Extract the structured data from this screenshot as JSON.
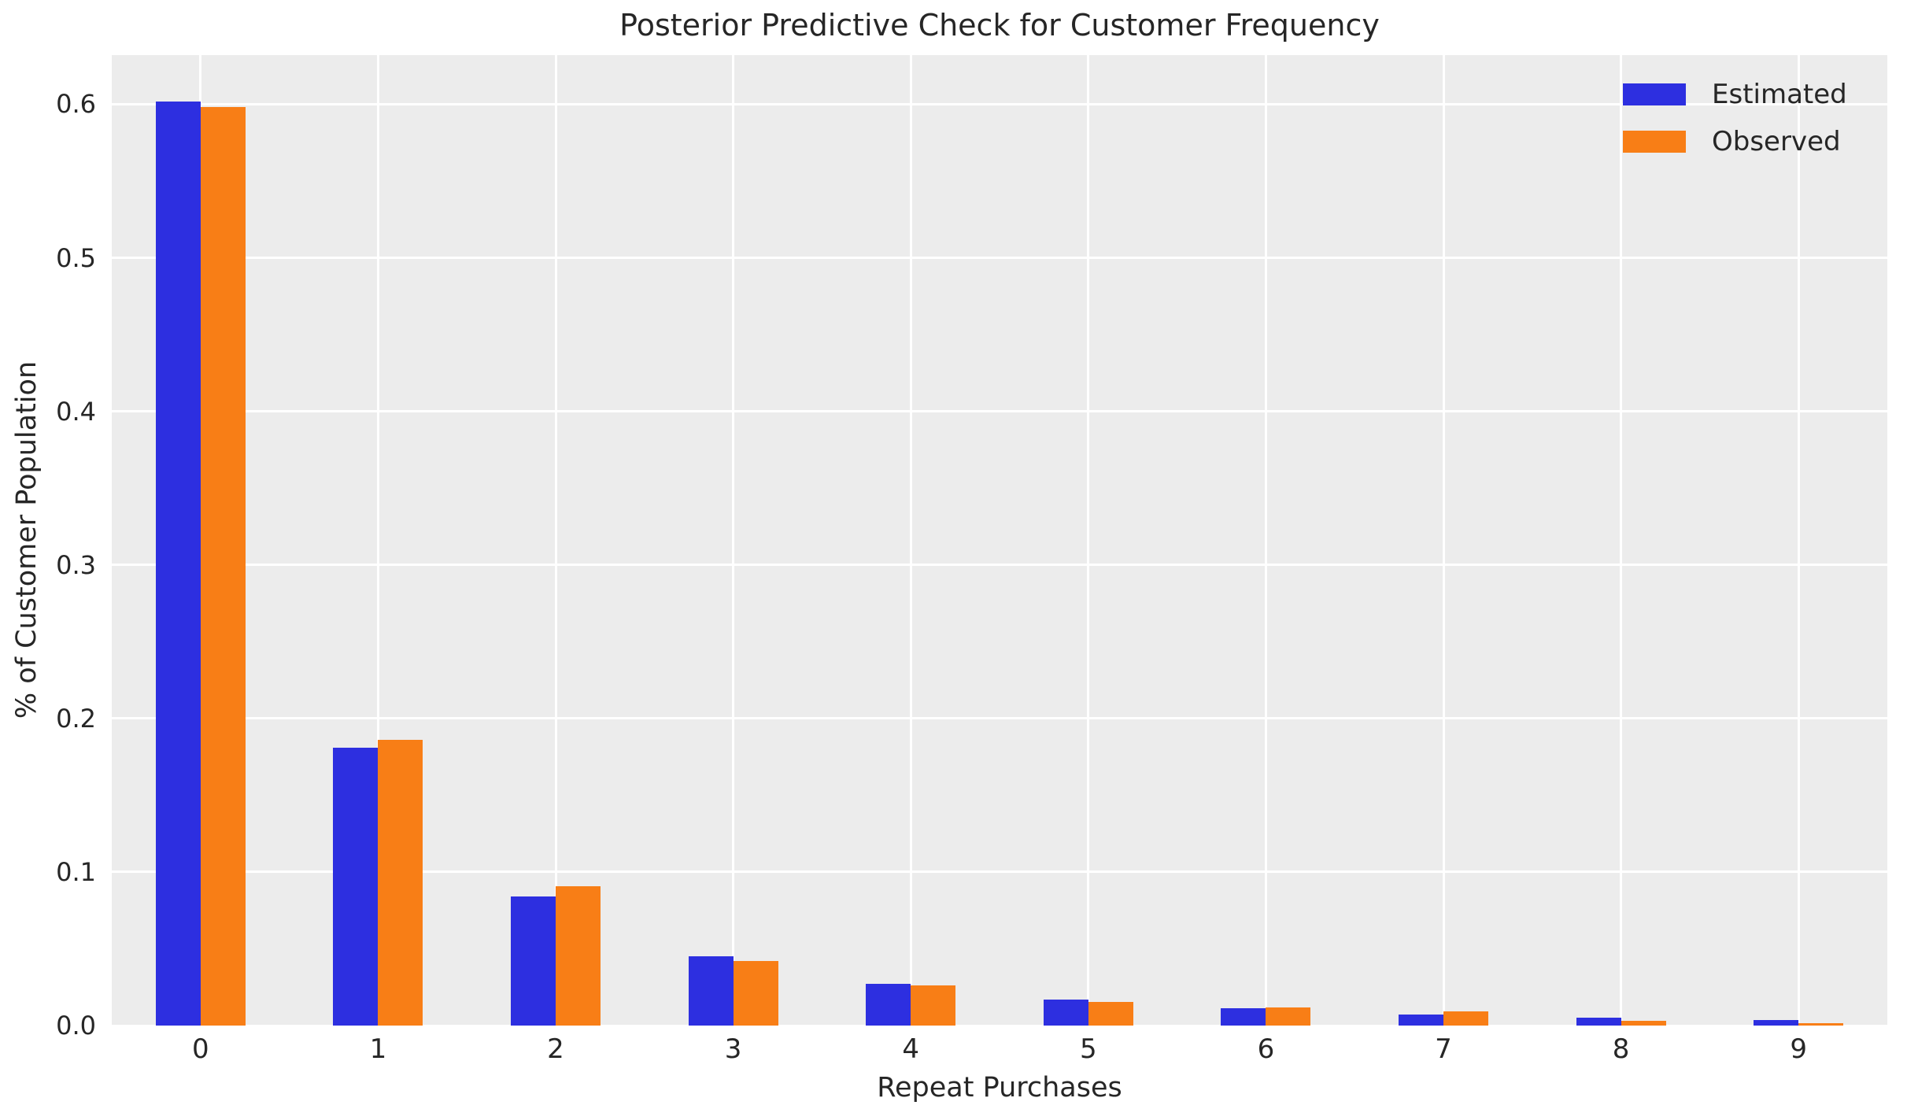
{
  "figure": {
    "background_color": "#ffffff",
    "axes_background_color": "#ececec",
    "grid_color": "#ffffff",
    "text_color": "#262626"
  },
  "chart_data": {
    "type": "bar",
    "title": "Posterior Predictive Check for Customer Frequency",
    "xlabel": "Repeat Purchases",
    "ylabel": "% of Customer Population",
    "categories": [
      "0",
      "1",
      "2",
      "3",
      "4",
      "5",
      "6",
      "7",
      "8",
      "9"
    ],
    "series": [
      {
        "name": "Estimated",
        "color": "#2d2fe0",
        "values": [
          0.602,
          0.181,
          0.084,
          0.045,
          0.027,
          0.017,
          0.0115,
          0.007,
          0.005,
          0.0035
        ]
      },
      {
        "name": "Observed",
        "color": "#f87e16",
        "values": [
          0.598,
          0.186,
          0.0905,
          0.042,
          0.026,
          0.0155,
          0.012,
          0.009,
          0.003,
          0.0015
        ]
      }
    ],
    "ylim": [
      0,
      0.632
    ],
    "yticks": [
      0,
      0.1,
      0.2,
      0.3,
      0.4,
      0.5,
      0.6
    ],
    "ytick_labels": [
      "0.0",
      "0.1",
      "0.2",
      "0.3",
      "0.4",
      "0.5",
      "0.6"
    ],
    "grid": true,
    "legend_position": "upper right"
  }
}
